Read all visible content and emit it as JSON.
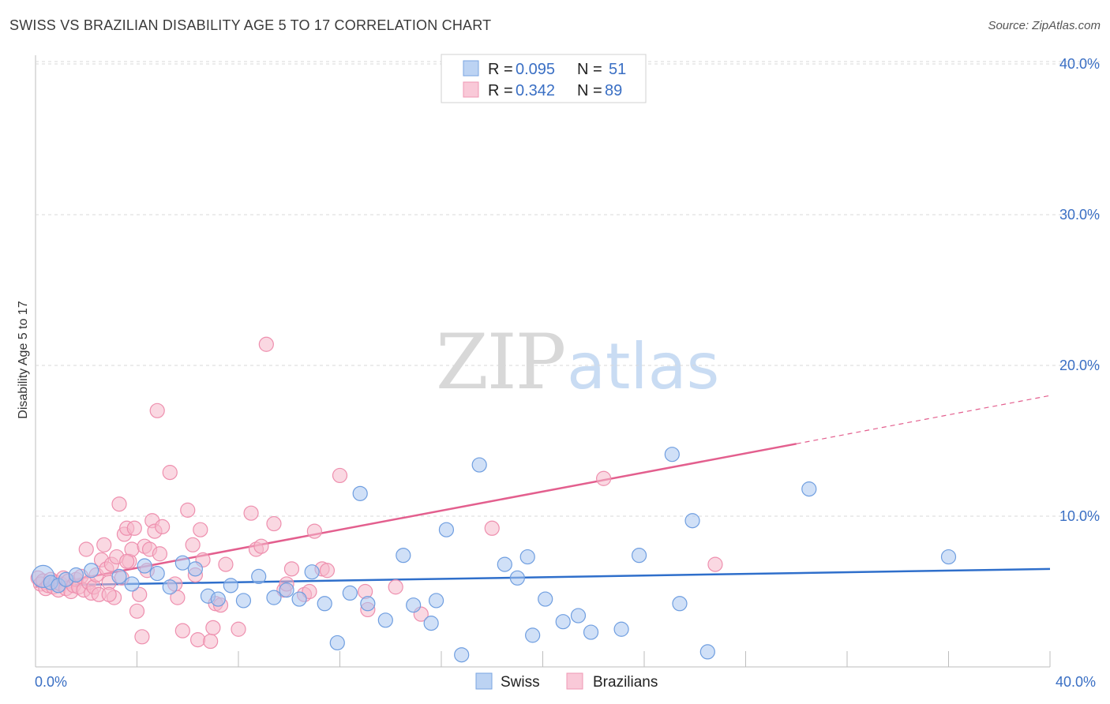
{
  "header": {
    "title": "SWISS VS BRAZILIAN DISABILITY AGE 5 TO 17 CORRELATION CHART",
    "source": "Source: ZipAtlas.com"
  },
  "watermark": {
    "zip": "ZIP",
    "atlas": "atlas"
  },
  "legend": {
    "items": [
      {
        "r_label": "R =",
        "r_value": "0.095",
        "n_label": "N =",
        "n_value": "51"
      },
      {
        "r_label": "R =",
        "r_value": "0.342",
        "n_label": "N =",
        "n_value": "89"
      }
    ]
  },
  "bottom_legend": {
    "swiss": "Swiss",
    "brazilians": "Brazilians"
  },
  "colors": {
    "swiss_fill": "#a9c7f0",
    "swiss_stroke": "#6f9ee0",
    "swiss_line": "#2f6fcb",
    "braz_fill": "#f6b8cb",
    "braz_stroke": "#ee8fae",
    "braz_line": "#e35f8e",
    "tick_text": "#3a6fc4",
    "grid": "#d9d9d9"
  },
  "chart_data": {
    "type": "scatter",
    "title": "SWISS VS BRAZILIAN DISABILITY AGE 5 TO 17 CORRELATION CHART",
    "xlabel": "",
    "ylabel": "Disability Age 5 to 17",
    "xlim": [
      0,
      40
    ],
    "ylim": [
      0,
      41
    ],
    "x_tick_labels": [
      "0.0%",
      "40.0%"
    ],
    "y_ticks": [
      10,
      20,
      30,
      40
    ],
    "y_tick_labels": [
      "10.0%",
      "20.0%",
      "30.0%",
      "40.0%"
    ],
    "grid": true,
    "legend_position": "top-center",
    "series": [
      {
        "name": "Swiss",
        "R": 0.095,
        "N": 51,
        "trend": {
          "x": [
            0,
            40
          ],
          "y": [
            5.4,
            6.5
          ]
        },
        "points": [
          [
            0.3,
            6.0
          ],
          [
            0.6,
            5.6
          ],
          [
            0.9,
            5.4
          ],
          [
            1.2,
            5.8
          ],
          [
            1.6,
            6.1
          ],
          [
            2.2,
            6.4
          ],
          [
            3.3,
            6.0
          ],
          [
            3.8,
            5.5
          ],
          [
            4.3,
            6.7
          ],
          [
            4.8,
            6.2
          ],
          [
            5.3,
            5.3
          ],
          [
            5.8,
            6.9
          ],
          [
            6.3,
            6.5
          ],
          [
            6.8,
            4.7
          ],
          [
            7.2,
            4.5
          ],
          [
            7.7,
            5.4
          ],
          [
            8.2,
            4.4
          ],
          [
            8.8,
            6.0
          ],
          [
            9.4,
            4.6
          ],
          [
            9.9,
            5.1
          ],
          [
            10.4,
            4.5
          ],
          [
            10.9,
            6.3
          ],
          [
            11.4,
            4.2
          ],
          [
            11.9,
            1.6
          ],
          [
            12.4,
            4.9
          ],
          [
            12.8,
            11.5
          ],
          [
            13.1,
            4.2
          ],
          [
            13.8,
            3.1
          ],
          [
            14.5,
            7.4
          ],
          [
            14.9,
            4.1
          ],
          [
            15.6,
            2.9
          ],
          [
            15.8,
            4.4
          ],
          [
            16.2,
            9.1
          ],
          [
            16.8,
            0.8
          ],
          [
            17.5,
            13.4
          ],
          [
            18.5,
            6.8
          ],
          [
            19.0,
            5.9
          ],
          [
            19.4,
            7.3
          ],
          [
            19.6,
            2.1
          ],
          [
            20.1,
            4.5
          ],
          [
            20.8,
            3.0
          ],
          [
            21.4,
            3.4
          ],
          [
            21.9,
            2.3
          ],
          [
            23.1,
            2.5
          ],
          [
            23.8,
            7.4
          ],
          [
            25.1,
            14.1
          ],
          [
            25.4,
            4.2
          ],
          [
            25.9,
            9.7
          ],
          [
            26.5,
            1.0
          ],
          [
            30.5,
            11.8
          ],
          [
            36.0,
            7.3
          ]
        ]
      },
      {
        "name": "Brazilians",
        "R": 0.342,
        "N": 89,
        "trend_solid": {
          "x": [
            0,
            30.0
          ],
          "y": [
            5.3,
            14.8
          ]
        },
        "trend_dashed": {
          "x": [
            30.0,
            40
          ],
          "y": [
            14.8,
            18.0
          ]
        },
        "points": [
          [
            0.1,
            5.9
          ],
          [
            0.2,
            5.5
          ],
          [
            0.3,
            5.7
          ],
          [
            0.4,
            5.2
          ],
          [
            0.5,
            5.4
          ],
          [
            0.6,
            5.8
          ],
          [
            0.7,
            5.3
          ],
          [
            0.8,
            5.6
          ],
          [
            0.9,
            5.1
          ],
          [
            1.0,
            5.5
          ],
          [
            1.1,
            5.9
          ],
          [
            1.2,
            5.2
          ],
          [
            1.3,
            5.7
          ],
          [
            1.4,
            5.0
          ],
          [
            1.5,
            5.4
          ],
          [
            1.6,
            5.8
          ],
          [
            1.7,
            5.3
          ],
          [
            1.8,
            6.0
          ],
          [
            1.9,
            5.1
          ],
          [
            2.0,
            7.8
          ],
          [
            2.1,
            5.6
          ],
          [
            2.2,
            4.9
          ],
          [
            2.3,
            5.3
          ],
          [
            2.4,
            6.1
          ],
          [
            2.5,
            4.8
          ],
          [
            2.6,
            7.1
          ],
          [
            2.7,
            8.1
          ],
          [
            2.8,
            6.5
          ],
          [
            2.9,
            5.6
          ],
          [
            3.0,
            6.8
          ],
          [
            3.1,
            4.6
          ],
          [
            3.2,
            7.3
          ],
          [
            3.3,
            10.8
          ],
          [
            3.4,
            5.9
          ],
          [
            3.5,
            8.8
          ],
          [
            3.6,
            9.2
          ],
          [
            3.7,
            7.0
          ],
          [
            3.8,
            7.8
          ],
          [
            3.9,
            9.2
          ],
          [
            4.0,
            3.7
          ],
          [
            4.1,
            4.8
          ],
          [
            4.2,
            2.0
          ],
          [
            4.3,
            8.0
          ],
          [
            4.4,
            6.4
          ],
          [
            4.5,
            7.8
          ],
          [
            4.6,
            9.7
          ],
          [
            4.7,
            9.0
          ],
          [
            4.8,
            17.0
          ],
          [
            4.9,
            7.5
          ],
          [
            5.0,
            9.3
          ],
          [
            5.3,
            12.9
          ],
          [
            5.5,
            5.5
          ],
          [
            5.6,
            4.6
          ],
          [
            5.8,
            2.4
          ],
          [
            6.0,
            10.4
          ],
          [
            6.2,
            8.1
          ],
          [
            6.3,
            6.1
          ],
          [
            6.4,
            1.8
          ],
          [
            6.5,
            9.1
          ],
          [
            6.6,
            7.1
          ],
          [
            6.9,
            1.7
          ],
          [
            7.0,
            2.6
          ],
          [
            7.1,
            4.2
          ],
          [
            7.3,
            4.1
          ],
          [
            7.5,
            6.8
          ],
          [
            8.0,
            2.5
          ],
          [
            8.5,
            10.2
          ],
          [
            8.7,
            7.8
          ],
          [
            8.9,
            8.0
          ],
          [
            9.1,
            21.4
          ],
          [
            9.4,
            9.5
          ],
          [
            9.8,
            5.1
          ],
          [
            9.9,
            5.5
          ],
          [
            10.1,
            6.5
          ],
          [
            10.6,
            4.8
          ],
          [
            10.8,
            5.0
          ],
          [
            11.0,
            9.0
          ],
          [
            11.3,
            6.5
          ],
          [
            11.5,
            6.4
          ],
          [
            12.0,
            12.7
          ],
          [
            13.0,
            5.0
          ],
          [
            13.1,
            3.8
          ],
          [
            14.2,
            5.3
          ],
          [
            15.2,
            3.5
          ],
          [
            18.0,
            9.2
          ],
          [
            22.4,
            12.5
          ],
          [
            26.8,
            6.8
          ],
          [
            2.9,
            4.8
          ],
          [
            3.6,
            7.0
          ]
        ]
      }
    ]
  }
}
